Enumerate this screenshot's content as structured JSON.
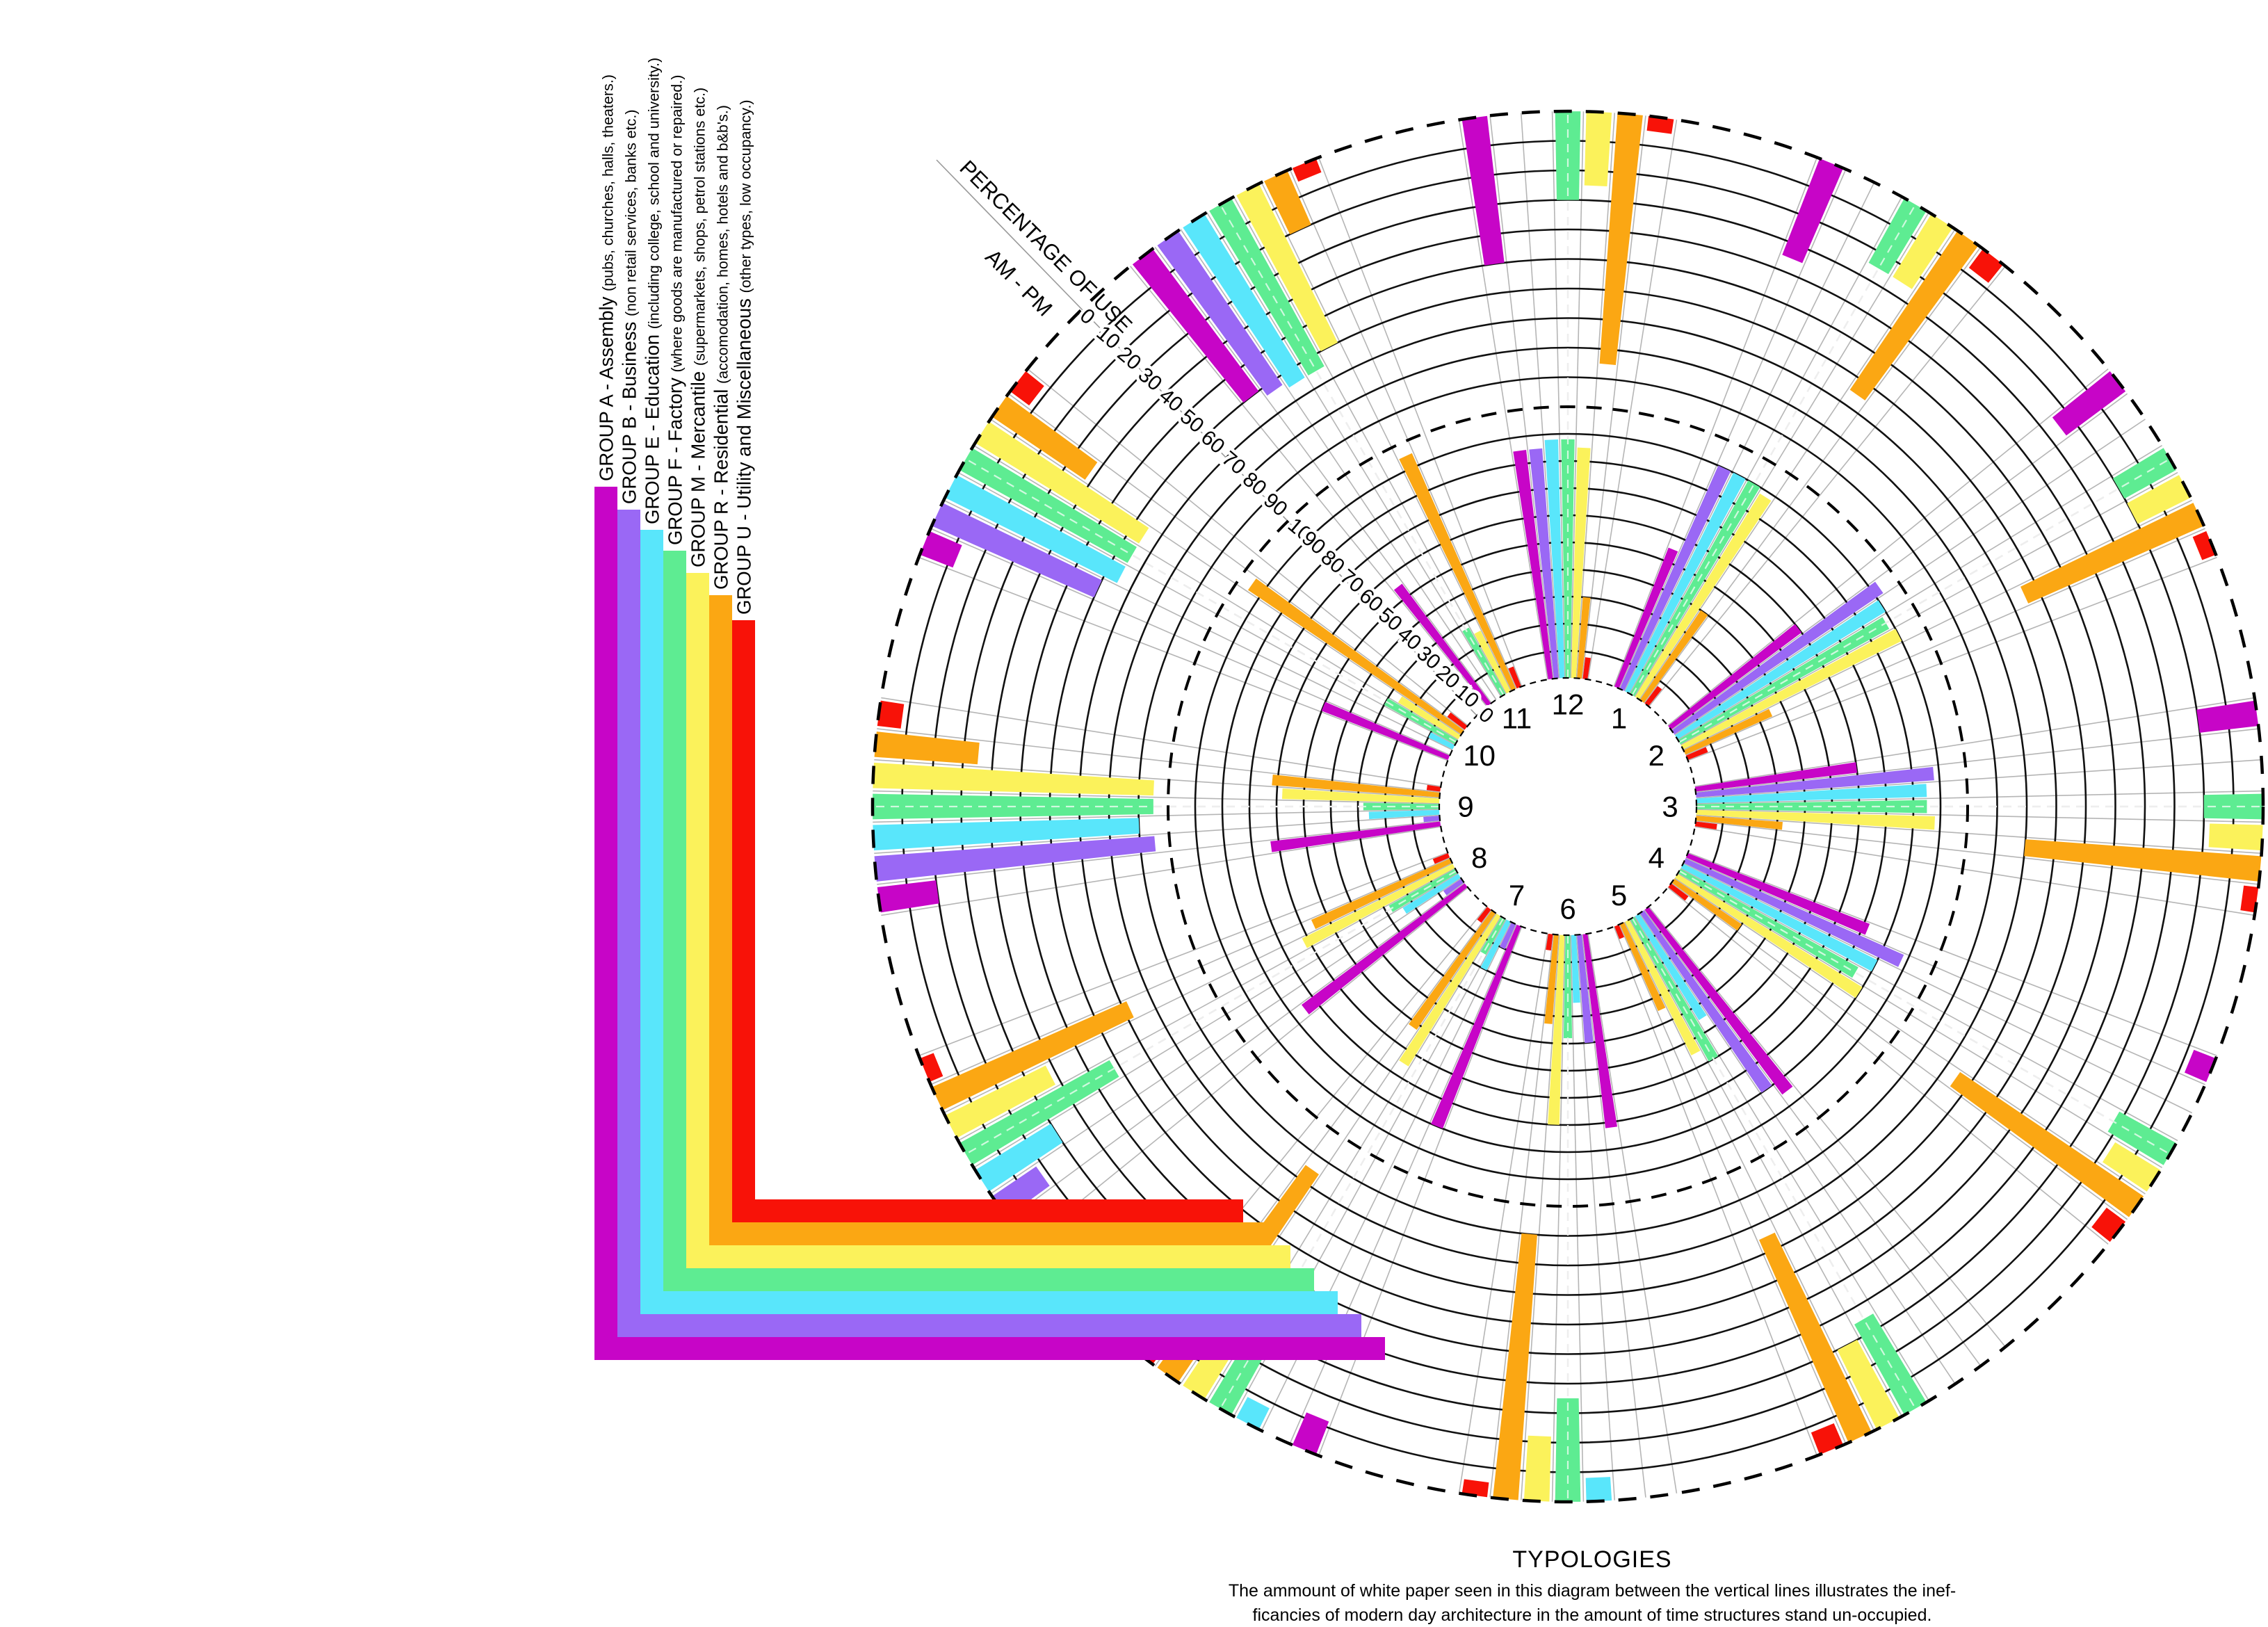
{
  "figure": {
    "percentage_label": "PERCENTAGE OF USE",
    "ampm_label": "AM  -  PM",
    "typologies_title": "TYPOLOGIES",
    "caption_line1": "The ammount of white paper seen in this diagram between the vertical lines illustrates the inef-",
    "caption_line2": "ficancies of modern day architecture in the amount of time structures stand un-occupied."
  },
  "legend": {
    "groups": [
      {
        "code": "A",
        "label": "GROUP A - Assembly",
        "detail": "(pubs, churches, halls, theaters.)",
        "color": "#c705c7"
      },
      {
        "code": "B",
        "label": "GROUP B - Business",
        "detail": "(non retail services, banks etc.)",
        "color": "#9a68f5"
      },
      {
        "code": "E",
        "label": "GROUP E - Education",
        "detail": "(including college, school and university.)",
        "color": "#59e6fb"
      },
      {
        "code": "F",
        "label": "GROUP F - Factory",
        "detail": "(where goods are manufactured or repaired.)",
        "color": "#5eec92"
      },
      {
        "code": "M",
        "label": "GROUP M - Mercantile",
        "detail": "(supermarkets, shops, petrol stations etc.)",
        "color": "#fbf25b"
      },
      {
        "code": "R",
        "label": "GROUP R - Residential",
        "detail": "(accomodation, homes, hotels and b&b's.)",
        "color": "#fba713"
      },
      {
        "code": "U",
        "label": "GROUP U - Utility and Miscellaneous",
        "detail": "(other types, low occupancy.)",
        "color": "#f81208"
      }
    ]
  },
  "clock_hours": [
    "12",
    "1",
    "2",
    "3",
    "4",
    "5",
    "6",
    "7",
    "8",
    "9",
    "10",
    "11"
  ],
  "scale": {
    "outer_ticks": [
      "0",
      "10",
      "20",
      "30",
      "40",
      "50",
      "60",
      "70",
      "80",
      "90"
    ],
    "shared_tick": "100",
    "inner_ticks": [
      "90",
      "80",
      "70",
      "60",
      "50",
      "40",
      "30",
      "20",
      "10",
      "0"
    ]
  },
  "chart_data": {
    "type": "radial-bar",
    "title": "PERCENTAGE OF USE AM - PM",
    "units": "percent of use (0-100)",
    "rings": {
      "outer": "AM (bars hang inward from outer dashed circle)",
      "inner": "PM (bars grow outward from central hub)"
    },
    "categories": [
      "12",
      "1",
      "2",
      "3",
      "4",
      "5",
      "6",
      "7",
      "8",
      "9",
      "10",
      "11"
    ],
    "groups": [
      "A",
      "B",
      "E",
      "F",
      "M",
      "R",
      "U"
    ],
    "am": {
      "12": [
        50,
        0,
        0,
        30,
        25,
        85,
        5
      ],
      "1": [
        35,
        0,
        0,
        25,
        25,
        65,
        8
      ],
      "2": [
        25,
        0,
        0,
        20,
        20,
        65,
        5
      ],
      "3": [
        20,
        0,
        0,
        20,
        18,
        80,
        5
      ],
      "4": [
        8,
        0,
        0,
        22,
        18,
        75,
        8
      ],
      "5": [
        0,
        0,
        0,
        35,
        30,
        75,
        8
      ],
      "6": [
        0,
        0,
        8,
        35,
        22,
        90,
        5
      ],
      "7": [
        12,
        0,
        8,
        30,
        30,
        85,
        8
      ],
      "8": [
        12,
        18,
        30,
        58,
        38,
        72,
        5
      ],
      "9": [
        20,
        95,
        90,
        95,
        95,
        35,
        8
      ],
      "10": [
        12,
        60,
        65,
        65,
        65,
        38,
        8
      ],
      "11": [
        60,
        63,
        65,
        65,
        60,
        20,
        5
      ]
    },
    "pm": {
      "12": [
        85,
        85,
        88,
        88,
        85,
        30,
        8
      ],
      "1": [
        55,
        90,
        90,
        90,
        88,
        40,
        8
      ],
      "2": [
        60,
        93,
        90,
        88,
        90,
        35,
        8
      ],
      "3": [
        60,
        88,
        85,
        85,
        88,
        32,
        8
      ],
      "4": [
        72,
        88,
        80,
        75,
        80,
        30,
        8
      ],
      "5": [
        85,
        80,
        45,
        60,
        55,
        35,
        5
      ],
      "6": [
        72,
        40,
        25,
        38,
        70,
        33,
        6
      ],
      "7": [
        80,
        10,
        20,
        15,
        65,
        52,
        6
      ],
      "8": [
        75,
        8,
        24,
        28,
        62,
        56,
        6
      ],
      "9": [
        63,
        6,
        26,
        28,
        58,
        62,
        5
      ],
      "10": [
        50,
        0,
        10,
        30,
        26,
        95,
        8
      ],
      "11": [
        55,
        0,
        0,
        28,
        25,
        95,
        8
      ]
    }
  }
}
